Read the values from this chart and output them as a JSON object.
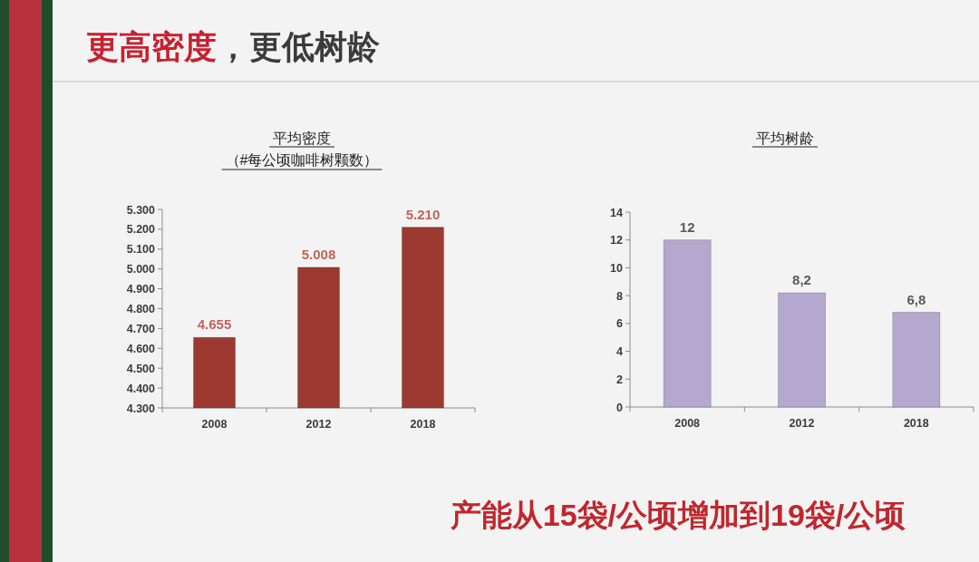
{
  "chart_data": [
    {
      "type": "other",
      "title": "更高密度，更低树龄",
      "annotations": [
        "产能从15袋/公顷增加到19袋/公顷"
      ]
    },
    {
      "type": "bar",
      "title": "平均密度",
      "subtitle": "（#每公顷咖啡树颗数）",
      "categories": [
        "2008",
        "2012",
        "2018"
      ],
      "values": [
        4655,
        5008,
        5210
      ],
      "value_labels": [
        "4.655",
        "5.008",
        "5.210"
      ],
      "color": "#9c3a31",
      "ylim": [
        4300,
        5300
      ],
      "yticks": [
        {
          "value": 4300,
          "label": "4.300"
        },
        {
          "value": 4400,
          "label": "4.400"
        },
        {
          "value": 4500,
          "label": "4.500"
        },
        {
          "value": 4600,
          "label": "4.600"
        },
        {
          "value": 4700,
          "label": "4.700"
        },
        {
          "value": 4800,
          "label": "4.800"
        },
        {
          "value": 4900,
          "label": "4.900"
        },
        {
          "value": 5000,
          "label": "5.000"
        },
        {
          "value": 5100,
          "label": "5.100"
        },
        {
          "value": 5200,
          "label": "5.200"
        },
        {
          "value": 5300,
          "label": "5.300"
        }
      ]
    },
    {
      "type": "bar",
      "title": "平均树龄",
      "categories": [
        "2008",
        "2012",
        "2018"
      ],
      "values": [
        12,
        8.2,
        6.8
      ],
      "value_labels": [
        "12",
        "8,2",
        "6,8"
      ],
      "color": "#b5a8cf",
      "ylim": [
        0,
        14
      ],
      "yticks": [
        0,
        2,
        4,
        6,
        8,
        10,
        12,
        14
      ]
    }
  ]
}
